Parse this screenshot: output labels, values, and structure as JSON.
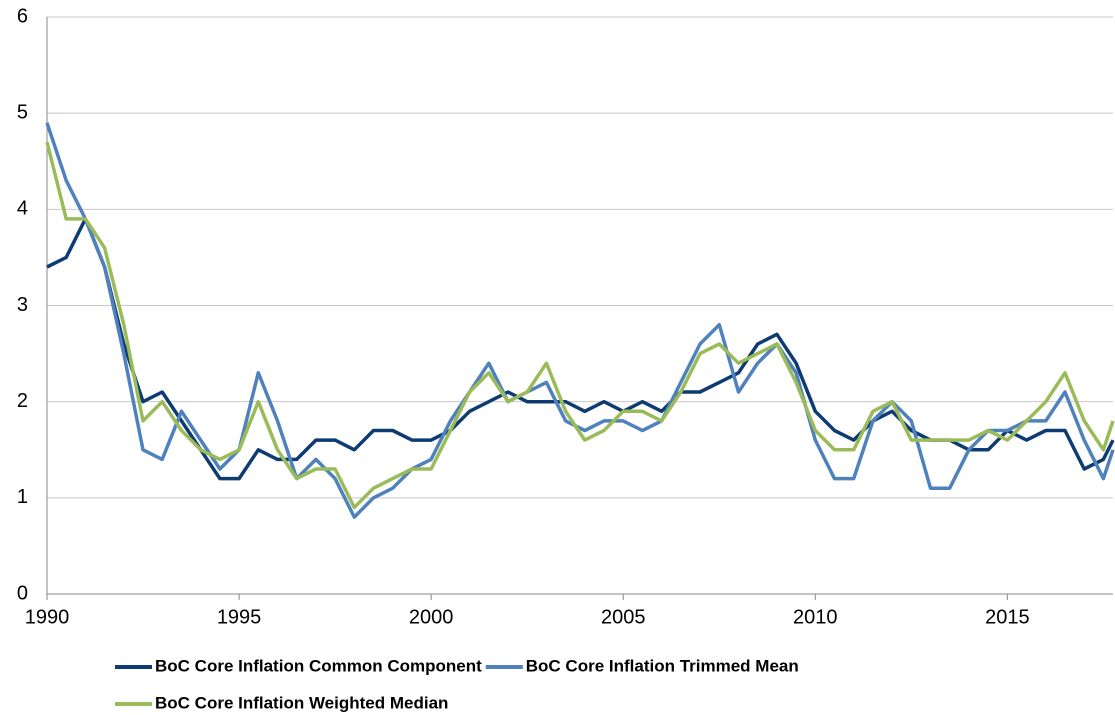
{
  "chart_data": {
    "type": "line",
    "x": [
      1990,
      1990.5,
      1991,
      1991.5,
      1992,
      1992.5,
      1993,
      1993.5,
      1994,
      1994.5,
      1995,
      1995.5,
      1996,
      1996.5,
      1997,
      1997.5,
      1998,
      1998.5,
      1999,
      1999.5,
      2000,
      2000.5,
      2001,
      2001.5,
      2002,
      2002.5,
      2003,
      2003.5,
      2004,
      2004.5,
      2005,
      2005.5,
      2006,
      2006.5,
      2007,
      2007.5,
      2008,
      2008.5,
      2009,
      2009.5,
      2010,
      2010.5,
      2011,
      2011.5,
      2012,
      2012.5,
      2013,
      2013.5,
      2014,
      2014.5,
      2015,
      2015.5,
      2016,
      2016.5,
      2017,
      2017.5,
      2017.75
    ],
    "series": [
      {
        "name": "BoC Core Inflation Common Component",
        "color": "#0f3b73",
        "values": [
          3.4,
          3.5,
          3.9,
          3.4,
          2.6,
          2.0,
          2.1,
          1.8,
          1.5,
          1.2,
          1.2,
          1.5,
          1.4,
          1.4,
          1.6,
          1.6,
          1.5,
          1.7,
          1.7,
          1.6,
          1.6,
          1.7,
          1.9,
          2.0,
          2.1,
          2.0,
          2.0,
          2.0,
          1.9,
          2.0,
          1.9,
          2.0,
          1.9,
          2.1,
          2.1,
          2.2,
          2.3,
          2.6,
          2.7,
          2.4,
          1.9,
          1.7,
          1.6,
          1.8,
          1.9,
          1.7,
          1.6,
          1.6,
          1.5,
          1.5,
          1.7,
          1.6,
          1.7,
          1.7,
          1.3,
          1.4,
          1.6
        ]
      },
      {
        "name": "BoC Core Inflation Trimmed Mean",
        "color": "#4f81bd",
        "values": [
          4.9,
          4.3,
          3.9,
          3.4,
          2.5,
          1.5,
          1.4,
          1.9,
          1.6,
          1.3,
          1.5,
          2.3,
          1.8,
          1.2,
          1.4,
          1.2,
          0.8,
          1.0,
          1.1,
          1.3,
          1.4,
          1.8,
          2.1,
          2.4,
          2.0,
          2.1,
          2.2,
          1.8,
          1.7,
          1.8,
          1.8,
          1.7,
          1.8,
          2.2,
          2.6,
          2.8,
          2.1,
          2.4,
          2.6,
          2.3,
          1.6,
          1.2,
          1.2,
          1.8,
          2.0,
          1.8,
          1.1,
          1.1,
          1.5,
          1.7,
          1.7,
          1.8,
          1.8,
          2.1,
          1.6,
          1.2,
          1.5
        ]
      },
      {
        "name": "BoC Core Inflation Weighted Median",
        "color": "#9bbb59",
        "values": [
          4.7,
          3.9,
          3.9,
          3.6,
          2.8,
          1.8,
          2.0,
          1.7,
          1.5,
          1.4,
          1.5,
          2.0,
          1.5,
          1.2,
          1.3,
          1.3,
          0.9,
          1.1,
          1.2,
          1.3,
          1.3,
          1.7,
          2.1,
          2.3,
          2.0,
          2.1,
          2.4,
          1.9,
          1.6,
          1.7,
          1.9,
          1.9,
          1.8,
          2.1,
          2.5,
          2.6,
          2.4,
          2.5,
          2.6,
          2.2,
          1.7,
          1.5,
          1.5,
          1.9,
          2.0,
          1.6,
          1.6,
          1.6,
          1.6,
          1.7,
          1.6,
          1.8,
          2.0,
          2.3,
          1.8,
          1.5,
          1.8
        ]
      }
    ],
    "xlim": [
      1990,
      2017.75
    ],
    "xticks": [
      1990,
      1995,
      2000,
      2005,
      2010,
      2015
    ],
    "ylim": [
      0,
      6
    ],
    "yticks": [
      0,
      1,
      2,
      3,
      4,
      5,
      6
    ],
    "grid": true,
    "legend": "bottom"
  }
}
